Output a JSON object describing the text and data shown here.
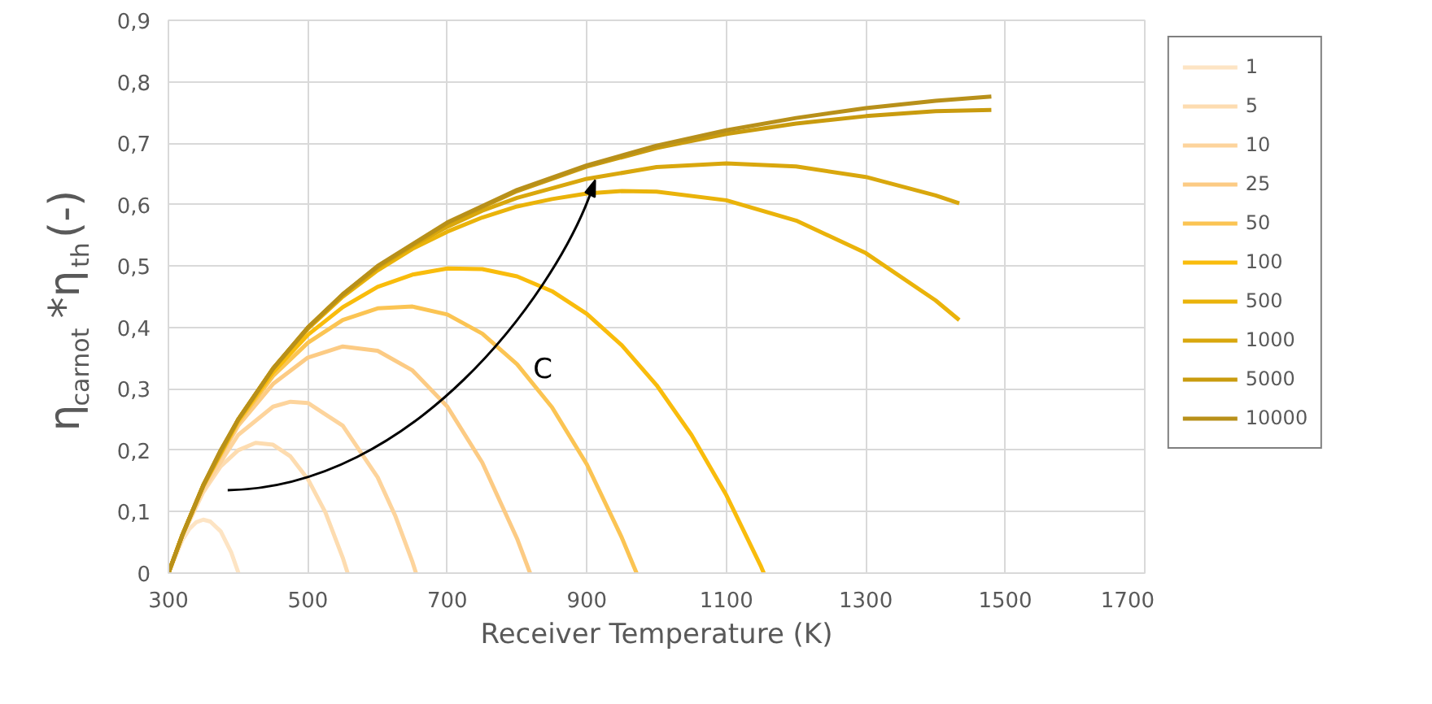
{
  "chart_data": {
    "type": "line",
    "xlabel": "Receiver Temperature (K)",
    "ylabel": "η$_{carnot}$*η$_{th}$(-)",
    "xlim": [
      300,
      1700
    ],
    "ylim": [
      0,
      0.9
    ],
    "xticks": [
      300,
      500,
      700,
      900,
      1100,
      1300,
      1500,
      1700
    ],
    "yticks": [
      0,
      {
        "value": 0.1,
        "label": "0,1"
      },
      {
        "value": 0.2,
        "label": "0,2"
      },
      {
        "value": 0.3,
        "label": "0,3"
      },
      {
        "value": 0.4,
        "label": "0,4"
      },
      {
        "value": 0.5,
        "label": "0,5"
      },
      {
        "value": 0.6,
        "label": "0,6"
      },
      {
        "value": 0.7,
        "label": "0,7"
      },
      {
        "value": 0.8,
        "label": "0,8"
      },
      {
        "value": 0.9,
        "label": "0,9"
      }
    ],
    "grid": true,
    "legend": "right",
    "annotations": [
      "C"
    ],
    "series": [
      {
        "name": "1",
        "color": "#fde4c4",
        "x": [
          300,
          320,
          330,
          340,
          350,
          360,
          375,
          390,
          400.5
        ],
        "values": [
          0,
          0.054,
          0.072,
          0.083,
          0.087,
          0.084,
          0.068,
          0.034,
          0
        ]
      },
      {
        "name": "5",
        "color": "#fddcb0",
        "x": [
          300,
          320,
          350,
          375,
          400,
          425,
          450,
          475,
          500,
          525,
          550,
          557
        ],
        "values": [
          0,
          0.061,
          0.132,
          0.174,
          0.2,
          0.212,
          0.209,
          0.19,
          0.153,
          0.099,
          0.025,
          0
        ]
      },
      {
        "name": "10",
        "color": "#fdd49c",
        "x": [
          300,
          320,
          350,
          400,
          450,
          475,
          500,
          550,
          600,
          625,
          650,
          655
        ],
        "values": [
          0,
          0.062,
          0.137,
          0.225,
          0.271,
          0.279,
          0.277,
          0.24,
          0.156,
          0.094,
          0.018,
          0
        ]
      },
      {
        "name": "25",
        "color": "#fccb84",
        "x": [
          300,
          320,
          350,
          400,
          450,
          500,
          550,
          600,
          650,
          700,
          750,
          800,
          818.6
        ],
        "values": [
          0,
          0.062,
          0.141,
          0.24,
          0.308,
          0.351,
          0.369,
          0.362,
          0.33,
          0.271,
          0.18,
          0.056,
          0
        ]
      },
      {
        "name": "50",
        "color": "#fbc453",
        "x": [
          300,
          320,
          350,
          400,
          450,
          500,
          550,
          600,
          650,
          700,
          750,
          800,
          850,
          900,
          950,
          971.3
        ],
        "values": [
          0,
          0.062,
          0.142,
          0.245,
          0.321,
          0.375,
          0.412,
          0.431,
          0.434,
          0.421,
          0.39,
          0.34,
          0.27,
          0.177,
          0.058,
          0
        ]
      },
      {
        "name": "100",
        "color": "#f9bc0c",
        "x": [
          300,
          320,
          350,
          400,
          450,
          500,
          550,
          600,
          650,
          700,
          750,
          800,
          850,
          900,
          950,
          1000,
          1050,
          1100,
          1150,
          1153.7
        ],
        "values": [
          0,
          0.062,
          0.142,
          0.248,
          0.327,
          0.388,
          0.433,
          0.466,
          0.486,
          0.496,
          0.495,
          0.483,
          0.459,
          0.422,
          0.371,
          0.306,
          0.225,
          0.127,
          0.01,
          0
        ]
      },
      {
        "name": "500",
        "color": "#eab30a",
        "x": [
          300,
          320,
          350,
          400,
          450,
          500,
          550,
          600,
          650,
          700,
          750,
          800,
          850,
          900,
          950,
          1000,
          1100,
          1200,
          1300,
          1400,
          1434
        ],
        "values": [
          0,
          0.062,
          0.143,
          0.25,
          0.332,
          0.398,
          0.45,
          0.493,
          0.528,
          0.556,
          0.579,
          0.597,
          0.609,
          0.618,
          0.622,
          0.621,
          0.607,
          0.574,
          0.521,
          0.444,
          0.412
        ]
      },
      {
        "name": "1000",
        "color": "#d9a70d",
        "x": [
          300,
          320,
          350,
          400,
          450,
          500,
          550,
          600,
          650,
          700,
          750,
          800,
          900,
          1000,
          1100,
          1200,
          1300,
          1400,
          1434
        ],
        "values": [
          0,
          0.062,
          0.143,
          0.25,
          0.333,
          0.399,
          0.452,
          0.497,
          0.533,
          0.564,
          0.59,
          0.611,
          0.642,
          0.661,
          0.667,
          0.662,
          0.645,
          0.615,
          0.602
        ]
      },
      {
        "name": "5000",
        "color": "#c99b0e",
        "x": [
          300,
          320,
          350,
          375,
          400,
          450,
          500,
          550,
          600,
          700,
          800,
          900,
          1000,
          1100,
          1200,
          1300,
          1400,
          1480
        ],
        "values": [
          0,
          0.062,
          0.143,
          0.2,
          0.25,
          0.333,
          0.4,
          0.454,
          0.499,
          0.57,
          0.622,
          0.662,
          0.692,
          0.715,
          0.732,
          0.744,
          0.752,
          0.754
        ]
      },
      {
        "name": "10000",
        "color": "#b8901a",
        "x": [
          300,
          320,
          350,
          375,
          400,
          450,
          500,
          550,
          600,
          700,
          800,
          900,
          1000,
          1100,
          1200,
          1300,
          1400,
          1480
        ],
        "values": [
          0,
          0.062,
          0.143,
          0.2,
          0.25,
          0.333,
          0.4,
          0.454,
          0.5,
          0.571,
          0.624,
          0.664,
          0.696,
          0.721,
          0.741,
          0.757,
          0.769,
          0.776
        ]
      }
    ]
  }
}
